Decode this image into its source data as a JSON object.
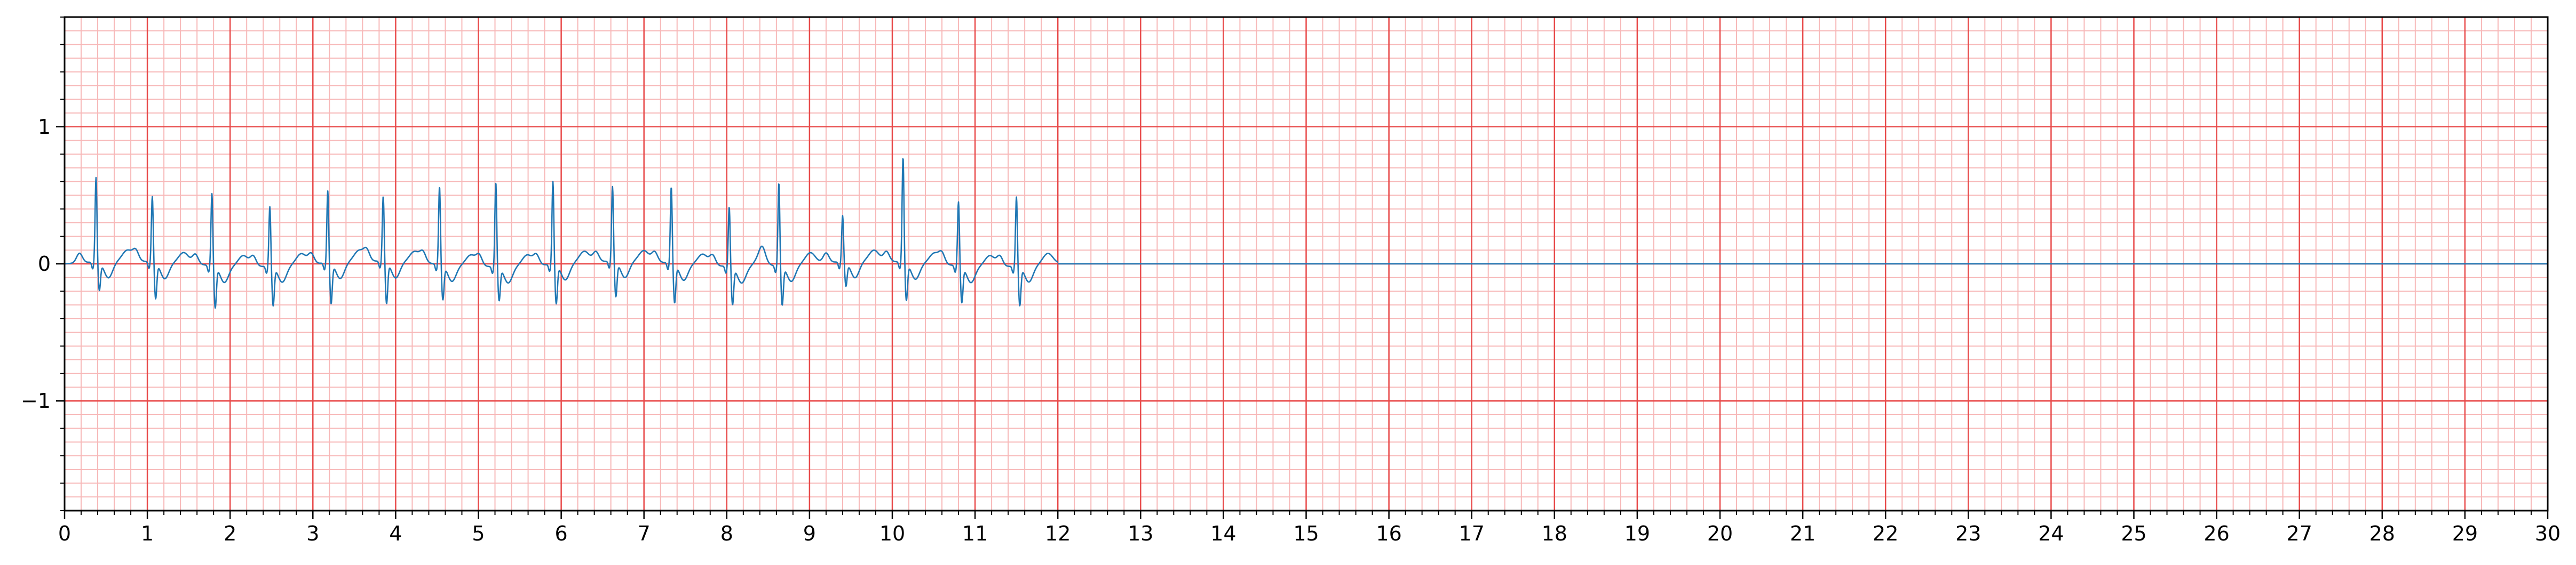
{
  "chart_data": {
    "type": "line",
    "title": "",
    "xlabel": "",
    "ylabel": "",
    "xlim": [
      0,
      30
    ],
    "ylim": [
      -1.8,
      1.8
    ],
    "x_ticks": [
      0,
      1,
      2,
      3,
      4,
      5,
      6,
      7,
      8,
      9,
      10,
      11,
      12,
      13,
      14,
      15,
      16,
      17,
      18,
      19,
      20,
      21,
      22,
      23,
      24,
      25,
      26,
      27,
      28,
      29,
      30
    ],
    "y_ticks": [
      -1,
      0,
      1
    ],
    "x_tick_labels": [
      "0",
      "1",
      "2",
      "3",
      "4",
      "5",
      "6",
      "7",
      "8",
      "9",
      "10",
      "11",
      "12",
      "13",
      "14",
      "15",
      "16",
      "17",
      "18",
      "19",
      "20",
      "21",
      "22",
      "23",
      "24",
      "25",
      "26",
      "27",
      "28",
      "29",
      "30"
    ],
    "y_tick_labels": [
      "−1",
      "0",
      "1"
    ],
    "grid": {
      "major": true,
      "minor": true,
      "x_minor_step": 0.2,
      "y_minor_step": 0.1
    },
    "colors": {
      "major_grid": "#e84a4a",
      "minor_grid": "#f7b8b8",
      "series": "#1f77b4",
      "axes": "#000000"
    },
    "signal_end": 12.0,
    "baseline_after_end": 0.0,
    "beats": [
      {
        "t": 0.38,
        "r": 0.62,
        "s": -0.2
      },
      {
        "t": 1.06,
        "r": 0.48,
        "s": -0.26
      },
      {
        "t": 1.78,
        "r": 0.53,
        "s": -0.3
      },
      {
        "t": 2.48,
        "r": 0.44,
        "s": -0.28
      },
      {
        "t": 3.18,
        "r": 0.53,
        "s": -0.29
      },
      {
        "t": 3.85,
        "r": 0.48,
        "s": -0.3
      },
      {
        "t": 4.53,
        "r": 0.57,
        "s": -0.25
      },
      {
        "t": 5.21,
        "r": 0.62,
        "s": -0.24
      },
      {
        "t": 5.9,
        "r": 0.61,
        "s": -0.28
      },
      {
        "t": 6.62,
        "r": 0.55,
        "s": -0.25
      },
      {
        "t": 7.33,
        "r": 0.56,
        "s": -0.28
      },
      {
        "t": 8.03,
        "r": 0.44,
        "s": -0.27
      },
      {
        "t": 8.63,
        "r": 0.61,
        "s": -0.28
      },
      {
        "t": 9.4,
        "r": 0.34,
        "s": -0.17
      },
      {
        "t": 10.13,
        "r": 0.77,
        "s": -0.27
      },
      {
        "t": 10.8,
        "r": 0.47,
        "s": -0.26
      },
      {
        "t": 11.5,
        "r": 0.51,
        "s": -0.28
      }
    ]
  }
}
